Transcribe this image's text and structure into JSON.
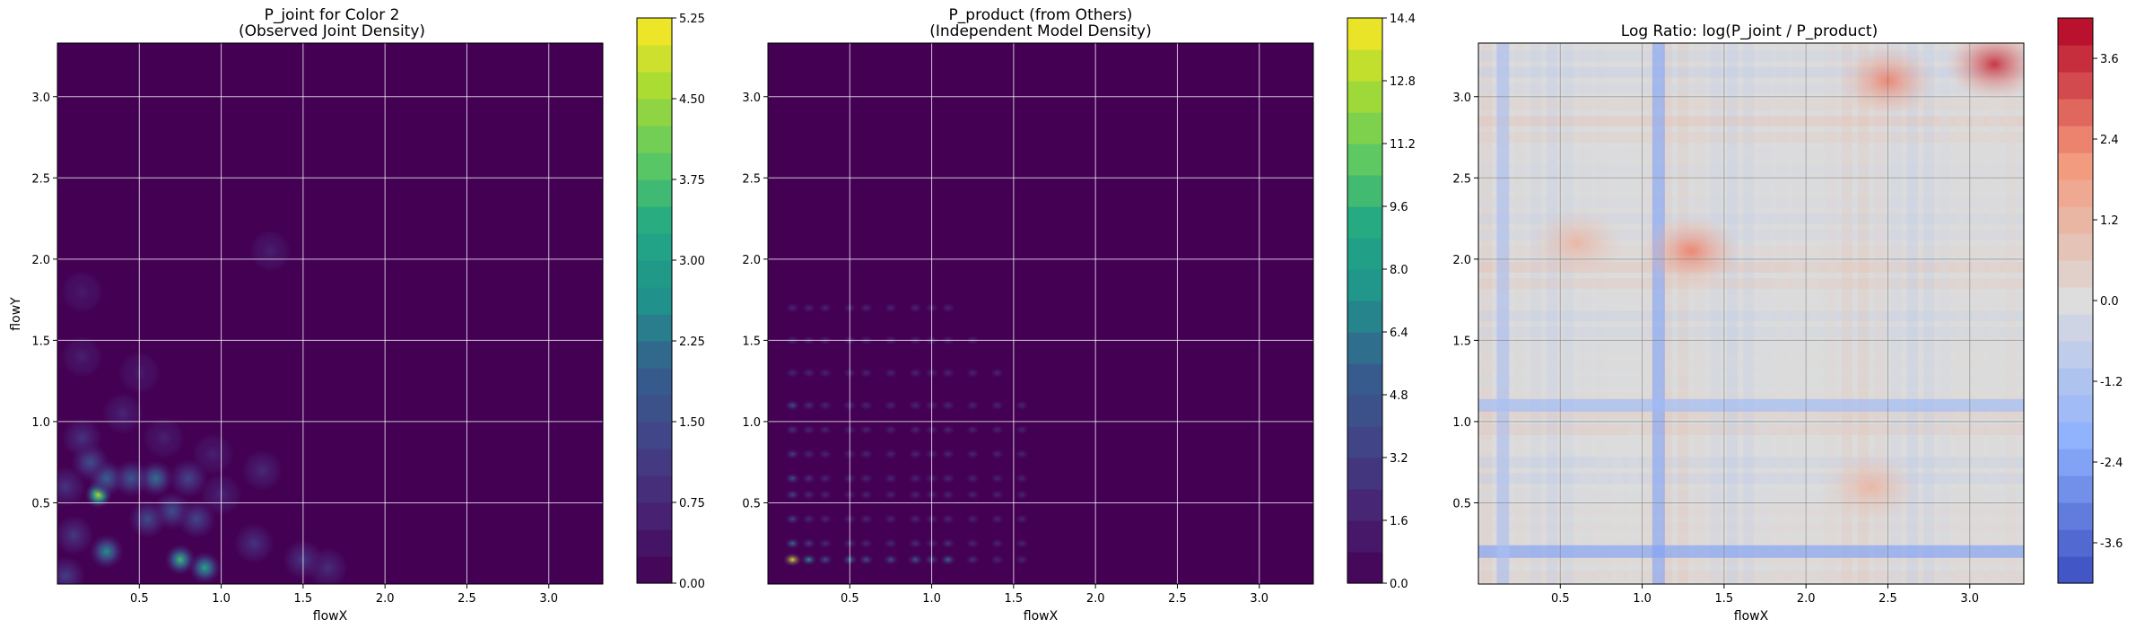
{
  "chart_data": [
    {
      "type": "heatmap",
      "title_line1": "P_joint for Color 2",
      "title_line2": "(Observed Joint Density)",
      "xlabel": "flowX",
      "ylabel": "flowY",
      "xlim": [
        0.0,
        3.33
      ],
      "ylim": [
        0.0,
        3.33
      ],
      "x_ticks": [
        "0.5",
        "1.0",
        "1.5",
        "2.0",
        "2.5",
        "3.0"
      ],
      "y_ticks": [
        "0.5",
        "1.0",
        "1.5",
        "2.0",
        "2.5",
        "3.0"
      ],
      "grid": true,
      "colormap": "viridis",
      "colorbar": {
        "range": [
          0.0,
          5.25
        ],
        "ticks": [
          "0.00",
          "0.75",
          "1.50",
          "2.25",
          "3.00",
          "3.75",
          "4.50",
          "5.25"
        ],
        "levels": 21
      },
      "hotspots": [
        {
          "x": 0.25,
          "y": 0.55,
          "value": 4.6
        },
        {
          "x": 0.75,
          "y": 0.15,
          "value": 3.6
        },
        {
          "x": 0.9,
          "y": 0.1,
          "value": 3.2
        },
        {
          "x": 0.3,
          "y": 0.2,
          "value": 2.6
        },
        {
          "x": 0.6,
          "y": 0.65,
          "value": 2.2
        },
        {
          "x": 0.3,
          "y": 0.65,
          "value": 2.0
        },
        {
          "x": 0.45,
          "y": 0.65,
          "value": 1.8
        },
        {
          "x": 0.2,
          "y": 0.75,
          "value": 1.6
        },
        {
          "x": 0.7,
          "y": 0.45,
          "value": 1.6
        },
        {
          "x": 0.55,
          "y": 0.4,
          "value": 1.5
        },
        {
          "x": 0.85,
          "y": 0.4,
          "value": 1.4
        },
        {
          "x": 0.8,
          "y": 0.65,
          "value": 1.4
        },
        {
          "x": 0.05,
          "y": 0.05,
          "value": 1.2
        },
        {
          "x": 0.1,
          "y": 0.3,
          "value": 1.1
        },
        {
          "x": 0.15,
          "y": 0.9,
          "value": 1.0
        },
        {
          "x": 0.05,
          "y": 0.6,
          "value": 1.0
        },
        {
          "x": 1.2,
          "y": 0.25,
          "value": 1.0
        },
        {
          "x": 1.5,
          "y": 0.15,
          "value": 1.1
        },
        {
          "x": 1.65,
          "y": 0.1,
          "value": 0.9
        },
        {
          "x": 1.25,
          "y": 0.7,
          "value": 0.8
        },
        {
          "x": 1.0,
          "y": 0.55,
          "value": 0.7
        },
        {
          "x": 0.4,
          "y": 1.05,
          "value": 0.7
        },
        {
          "x": 0.15,
          "y": 1.4,
          "value": 0.6
        },
        {
          "x": 0.15,
          "y": 1.8,
          "value": 0.5
        },
        {
          "x": 1.3,
          "y": 2.05,
          "value": 0.6
        },
        {
          "x": 0.65,
          "y": 0.9,
          "value": 0.6
        },
        {
          "x": 0.95,
          "y": 0.8,
          "value": 0.6
        },
        {
          "x": 0.5,
          "y": 1.3,
          "value": 0.5
        }
      ]
    },
    {
      "type": "heatmap",
      "title_line1": "P_product (from Others)",
      "title_line2": "(Independent Model Density)",
      "xlabel": "flowX",
      "ylabel": "",
      "xlim": [
        0.0,
        3.33
      ],
      "ylim": [
        0.0,
        3.33
      ],
      "x_ticks": [
        "0.5",
        "1.0",
        "1.5",
        "2.0",
        "2.5",
        "3.0"
      ],
      "y_ticks": [
        "0.5",
        "1.0",
        "1.5",
        "2.0",
        "2.5",
        "3.0"
      ],
      "grid": true,
      "colormap": "viridis",
      "colorbar": {
        "range": [
          0.0,
          14.4
        ],
        "ticks": [
          "0.0",
          "1.6",
          "3.2",
          "4.8",
          "6.4",
          "8.0",
          "9.6",
          "11.2",
          "12.8",
          "14.4"
        ],
        "levels": 18
      },
      "x_marginal_peaks": [
        {
          "x": 0.15,
          "w": 1.0
        },
        {
          "x": 0.25,
          "w": 0.55
        },
        {
          "x": 0.35,
          "w": 0.35
        },
        {
          "x": 0.5,
          "w": 0.45
        },
        {
          "x": 0.6,
          "w": 0.35
        },
        {
          "x": 0.75,
          "w": 0.35
        },
        {
          "x": 0.9,
          "w": 0.4
        },
        {
          "x": 1.0,
          "w": 0.3
        },
        {
          "x": 1.1,
          "w": 0.45
        },
        {
          "x": 1.25,
          "w": 0.2
        },
        {
          "x": 1.4,
          "w": 0.15
        },
        {
          "x": 1.55,
          "w": 0.1
        }
      ],
      "y_marginal_peaks": [
        {
          "y": 0.15,
          "w": 1.0
        },
        {
          "y": 0.25,
          "w": 0.45
        },
        {
          "y": 0.4,
          "w": 0.3
        },
        {
          "y": 0.55,
          "w": 0.3
        },
        {
          "y": 0.65,
          "w": 0.35
        },
        {
          "y": 0.8,
          "w": 0.25
        },
        {
          "y": 0.95,
          "w": 0.2
        },
        {
          "y": 1.1,
          "w": 0.35
        },
        {
          "y": 1.3,
          "w": 0.15
        },
        {
          "y": 1.5,
          "w": 0.1
        },
        {
          "y": 1.7,
          "w": 0.08
        }
      ],
      "peak_value": 13.5
    },
    {
      "type": "heatmap",
      "title_line1": "Log Ratio: log(P_joint / P_product)",
      "title_line2": "",
      "xlabel": "flowX",
      "ylabel": "",
      "xlim": [
        0.0,
        3.33
      ],
      "ylim": [
        0.0,
        3.33
      ],
      "x_ticks": [
        "0.5",
        "1.0",
        "1.5",
        "2.0",
        "2.5",
        "3.0"
      ],
      "y_ticks": [
        "0.5",
        "1.0",
        "1.5",
        "2.0",
        "2.5",
        "3.0"
      ],
      "grid": true,
      "colormap": "coolwarm",
      "colorbar": {
        "range": [
          -4.2,
          4.2
        ],
        "ticks": [
          "-3.6",
          "-2.4",
          "-1.2",
          "0.0",
          "1.2",
          "2.4",
          "3.6"
        ],
        "levels": 21
      },
      "warm_regions": [
        {
          "x": 1.3,
          "y": 2.05,
          "value": 2.4
        },
        {
          "x": 3.15,
          "y": 3.2,
          "value": 3.6
        },
        {
          "x": 2.5,
          "y": 3.1,
          "value": 2.4
        },
        {
          "x": 0.6,
          "y": 2.1,
          "value": 1.2
        },
        {
          "x": 2.4,
          "y": 0.6,
          "value": 1.2
        }
      ],
      "cool_bands": [
        {
          "axis": "y",
          "at": 0.2,
          "value": -2.4
        },
        {
          "axis": "x",
          "at": 1.1,
          "value": -2.4
        },
        {
          "axis": "y",
          "at": 1.1,
          "value": -1.6
        },
        {
          "axis": "x",
          "at": 0.15,
          "value": -1.4
        }
      ]
    }
  ]
}
